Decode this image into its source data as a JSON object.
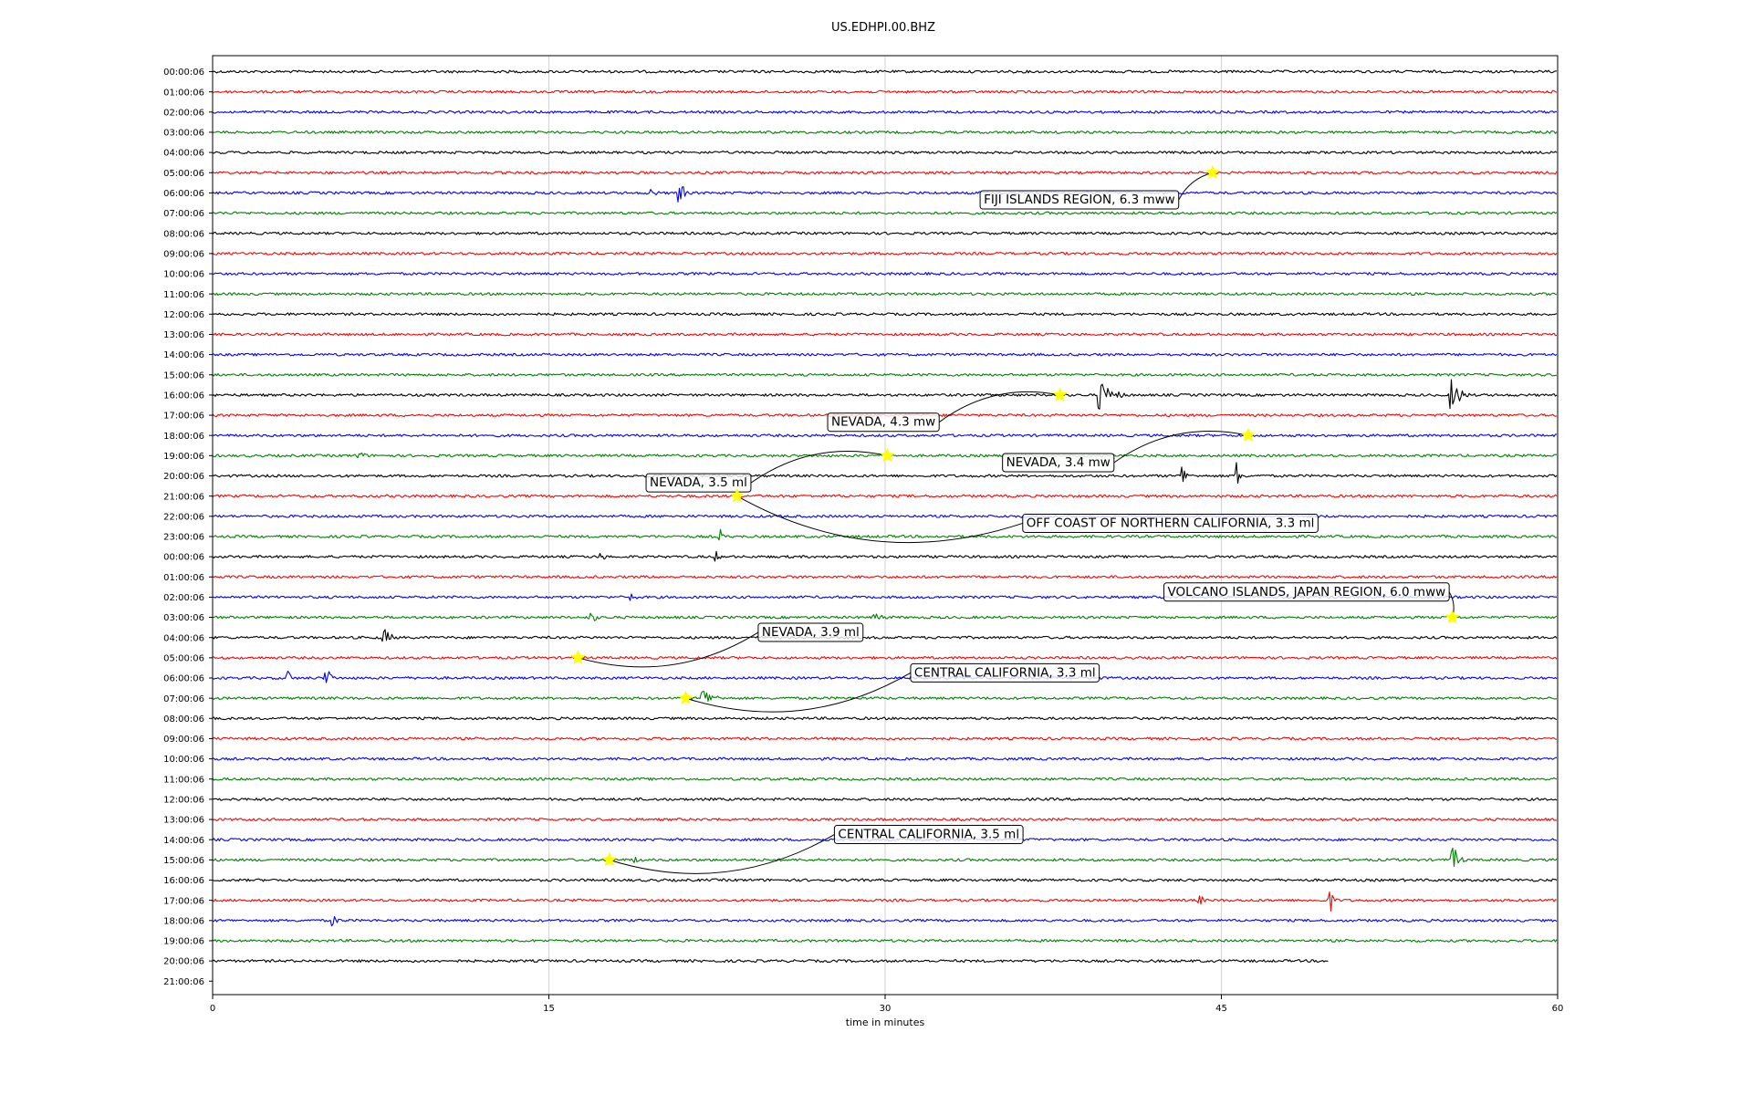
{
  "chart_data": {
    "type": "line",
    "title": "US.EDHPI.00.BHZ",
    "xlabel": "time in minutes",
    "ylabel": "",
    "xlim": [
      0,
      60
    ],
    "x_ticks": [
      "0",
      "15",
      "30",
      "45",
      "60"
    ],
    "grid_x": true,
    "color_cycle": [
      "#000000",
      "#ff0000",
      "#0000ff",
      "#008000"
    ],
    "end_minute_last_row": 49.8,
    "rows": [
      "00:00:06",
      "01:00:06",
      "02:00:06",
      "03:00:06",
      "04:00:06",
      "05:00:06",
      "06:00:06",
      "07:00:06",
      "08:00:06",
      "09:00:06",
      "10:00:06",
      "11:00:06",
      "12:00:06",
      "13:00:06",
      "14:00:06",
      "15:00:06",
      "16:00:06",
      "17:00:06",
      "18:00:06",
      "19:00:06",
      "20:00:06",
      "21:00:06",
      "22:00:06",
      "23:00:06",
      "00:00:06",
      "01:00:06",
      "02:00:06",
      "03:00:06",
      "04:00:06",
      "05:00:06",
      "06:00:06",
      "07:00:06",
      "08:00:06",
      "09:00:06",
      "10:00:06",
      "11:00:06",
      "12:00:06",
      "13:00:06",
      "14:00:06",
      "15:00:06",
      "16:00:06",
      "17:00:06",
      "18:00:06",
      "19:00:06",
      "20:00:06",
      "21:00:06"
    ],
    "signals": [
      {
        "row": 6,
        "minute": 20.8,
        "amplitude": 20,
        "duration": 0.4
      },
      {
        "row": 6,
        "minute": 19.5,
        "amplitude": 6,
        "duration": 0.8
      },
      {
        "row": 16,
        "minute": 39.5,
        "amplitude": 16,
        "duration": 1.8
      },
      {
        "row": 16,
        "minute": 55.2,
        "amplitude": 18,
        "duration": 1.2
      },
      {
        "row": 19,
        "minute": 6.5,
        "amplitude": 6,
        "duration": 0.8
      },
      {
        "row": 20,
        "minute": 43.2,
        "amplitude": 14,
        "duration": 0.6
      },
      {
        "row": 20,
        "minute": 45.6,
        "amplitude": 16,
        "duration": 0.6
      },
      {
        "row": 23,
        "minute": 22.6,
        "amplitude": 8,
        "duration": 0.3
      },
      {
        "row": 24,
        "minute": 22.4,
        "amplitude": 6,
        "duration": 0.5
      },
      {
        "row": 24,
        "minute": 17.3,
        "amplitude": 6,
        "duration": 0.4
      },
      {
        "row": 26,
        "minute": 18.5,
        "amplitude": 6,
        "duration": 1.0
      },
      {
        "row": 27,
        "minute": 29.5,
        "amplitude": 6,
        "duration": 1.2
      },
      {
        "row": 27,
        "minute": 16.8,
        "amplitude": 6,
        "duration": 1.2
      },
      {
        "row": 28,
        "minute": 7.6,
        "amplitude": 10,
        "duration": 1.0
      },
      {
        "row": 30,
        "minute": 5.0,
        "amplitude": 16,
        "duration": 0.6
      },
      {
        "row": 30,
        "minute": 3.3,
        "amplitude": 10,
        "duration": 0.4
      },
      {
        "row": 31,
        "minute": 21.8,
        "amplitude": 12,
        "duration": 1.4
      },
      {
        "row": 39,
        "minute": 55.3,
        "amplitude": 14,
        "duration": 0.8
      },
      {
        "row": 39,
        "minute": 18.8,
        "amplitude": 5,
        "duration": 0.8
      },
      {
        "row": 41,
        "minute": 49.8,
        "amplitude": 12,
        "duration": 0.5
      },
      {
        "row": 41,
        "minute": 44.0,
        "amplitude": 6,
        "duration": 0.5
      },
      {
        "row": 42,
        "minute": 5.3,
        "amplitude": 6,
        "duration": 1.0
      }
    ],
    "events": [
      {
        "label": "FIJI ISLANDS REGION, 6.3 mww",
        "row": 5,
        "minute": 44.6,
        "label_row": 6.3,
        "label_minute": 34.4
      },
      {
        "label": "NEVADA, 4.3 mw",
        "row": 16,
        "minute": 37.8,
        "label_row": 17.3,
        "label_minute": 27.6
      },
      {
        "label": "NEVADA, 3.4 mw",
        "row": 18,
        "minute": 46.2,
        "label_row": 19.3,
        "label_minute": 35.4
      },
      {
        "label": "NEVADA, 3.5 ml",
        "row": 19,
        "minute": 30.1,
        "label_row": 20.3,
        "label_minute": 19.5
      },
      {
        "label": "OFF COAST OF NORTHERN CALIFORNIA, 3.3 ml",
        "row": 21,
        "minute": 23.4,
        "label_row": 22.3,
        "label_minute": 36.3
      },
      {
        "label": "VOLCANO ISLANDS, JAPAN REGION, 6.0 mww",
        "row": 27,
        "minute": 55.3,
        "label_row": 25.7,
        "label_minute": 42.6
      },
      {
        "label": "NEVADA, 3.9 ml",
        "row": 29,
        "minute": 16.3,
        "label_row": 27.7,
        "label_minute": 24.5
      },
      {
        "label": "CENTRAL CALIFORNIA, 3.3 ml",
        "row": 31,
        "minute": 21.1,
        "label_row": 29.7,
        "label_minute": 31.3
      },
      {
        "label": "CENTRAL CALIFORNIA, 3.5 ml",
        "row": 39,
        "minute": 17.7,
        "label_row": 37.7,
        "label_minute": 27.9
      }
    ]
  }
}
